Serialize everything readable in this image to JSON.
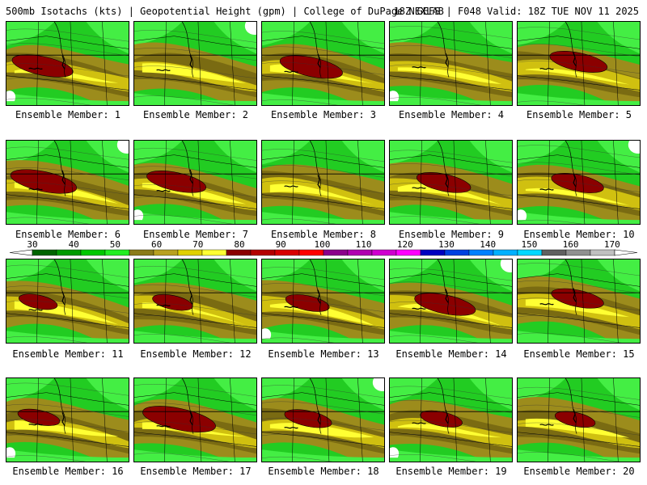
{
  "header": {
    "left_title": "500mb Isotachs (kts) | Geopotential Height (gpm) | College of DuPage NEXLAB",
    "right_title": "18Z GEFS | F048 Valid: 18Z TUE NOV 11 2025"
  },
  "panels": [
    {
      "label": "Ensemble Member: 1",
      "jet": 0.95
    },
    {
      "label": "Ensemble Member: 2",
      "jet": 0.0
    },
    {
      "label": "Ensemble Member: 3",
      "jet": 1.0
    },
    {
      "label": "Ensemble Member: 4",
      "jet": 0.0
    },
    {
      "label": "Ensemble Member: 5",
      "jet": 0.85
    },
    {
      "label": "Ensemble Member: 6",
      "jet": 1.1
    },
    {
      "label": "Ensemble Member: 7",
      "jet": 0.9
    },
    {
      "label": "Ensemble Member: 8",
      "jet": 0.0
    },
    {
      "label": "Ensemble Member: 9",
      "jet": 0.75
    },
    {
      "label": "Ensemble Member: 10",
      "jet": 0.7
    },
    {
      "label": "Ensemble Member: 11",
      "jet": 0.3
    },
    {
      "label": "Ensemble Member: 12",
      "jet": 0.35
    },
    {
      "label": "Ensemble Member: 13",
      "jet": 0.45
    },
    {
      "label": "Ensemble Member: 14",
      "jet": 0.95
    },
    {
      "label": "Ensemble Member: 15",
      "jet": 0.7
    },
    {
      "label": "Ensemble Member: 16",
      "jet": 0.4
    },
    {
      "label": "Ensemble Member: 17",
      "jet": 1.3
    },
    {
      "label": "Ensemble Member: 18",
      "jet": 0.55
    },
    {
      "label": "Ensemble Member: 19",
      "jet": 0.4
    },
    {
      "label": "Ensemble Member: 20",
      "jet": 0.35
    }
  ],
  "colorbar": {
    "labels": [
      "30",
      "40",
      "50",
      "60",
      "70",
      "80",
      "90",
      "100",
      "110",
      "120",
      "130",
      "140",
      "150",
      "160",
      "170"
    ],
    "colors": [
      "#006400",
      "#009a00",
      "#00c800",
      "#22ee22",
      "#8b7b1a",
      "#b8a020",
      "#e0d000",
      "#ffff33",
      "#8b0000",
      "#b40000",
      "#d80000",
      "#ff0000",
      "#8b008b",
      "#b000b0",
      "#d000d0",
      "#ff00ff",
      "#0000c0",
      "#0040e0",
      "#0080ff",
      "#00b0ff",
      "#00d8ff",
      "#606060",
      "#909090",
      "#c0c0c0"
    ]
  },
  "shading_colors": {
    "ocean": "#22cc22",
    "light_green": "#44ee44",
    "olive": "#9c8c1c",
    "dark_olive": "#7a6b12",
    "gold": "#d0c010",
    "yellow": "#ffff33",
    "jet_core": "#8b0000",
    "calm": "#ffffff"
  }
}
